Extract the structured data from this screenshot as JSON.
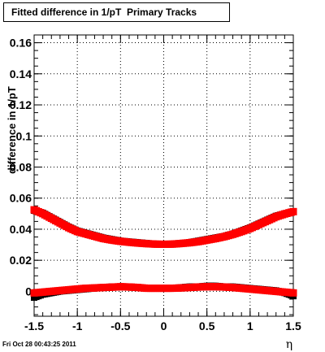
{
  "header": {
    "title": "Fitted difference in 1/pT  Primary Tracks"
  },
  "footer": {
    "timestamp": "Fri Oct 28 00:43:25 2011"
  },
  "colors": {
    "primary": "#ff0000",
    "secondary": "#000000",
    "grid": "#000000"
  },
  "chart_data": {
    "type": "scatter",
    "title": "Fitted difference in 1/pT  Primary Tracks",
    "xlabel": "η",
    "ylabel": "difference in 1/pT",
    "xlim": [
      -1.5,
      1.5
    ],
    "ylim": [
      -0.016,
      0.165
    ],
    "grid": true,
    "x_ticks": [
      -1.5,
      -1,
      -0.5,
      0,
      0.5,
      1,
      1.5
    ],
    "x_tick_labels": [
      "-1.5",
      "-1",
      "-0.5",
      "0",
      "0.5",
      "1",
      "1.5"
    ],
    "y_ticks": [
      0,
      0.02,
      0.04,
      0.06,
      0.08,
      0.1,
      0.12,
      0.14,
      0.16
    ],
    "y_tick_labels": [
      "0",
      "0.02",
      "0.04",
      "0.06",
      "0.08",
      "0.1",
      "0.12",
      "0.14",
      "0.16"
    ],
    "series": [
      {
        "color": "#000000",
        "x": [
          -1.5,
          -1.4,
          -1.3,
          -1.2,
          -1.1,
          -1.0,
          -0.9,
          -0.8,
          -0.7,
          -0.6,
          -0.5,
          -0.4,
          -0.3,
          -0.2,
          -0.1,
          0.0,
          0.1,
          0.2,
          0.3,
          0.4,
          0.5,
          0.6,
          0.7,
          0.8,
          0.9,
          1.0,
          1.1,
          1.2,
          1.3,
          1.4,
          1.5
        ],
        "y": [
          -0.004,
          -0.002,
          -0.001,
          0.0,
          0.0005,
          0.001,
          0.0015,
          0.002,
          0.0025,
          0.003,
          0.003,
          0.003,
          0.0025,
          0.002,
          0.002,
          0.002,
          0.002,
          0.0025,
          0.003,
          0.003,
          0.0035,
          0.0035,
          0.003,
          0.003,
          0.0025,
          0.002,
          0.0015,
          0.001,
          0.0005,
          -0.001,
          -0.003
        ]
      },
      {
        "color": "#ff0000",
        "x": [
          -1.5,
          -1.4,
          -1.3,
          -1.2,
          -1.1,
          -1.0,
          -0.9,
          -0.8,
          -0.7,
          -0.6,
          -0.5,
          -0.4,
          -0.3,
          -0.2,
          -0.1,
          0.0,
          0.1,
          0.2,
          0.3,
          0.4,
          0.5,
          0.6,
          0.7,
          0.8,
          0.9,
          1.0,
          1.1,
          1.2,
          1.3,
          1.4,
          1.5
        ],
        "y": [
          -0.001,
          -0.0005,
          0.0,
          0.0005,
          0.001,
          0.0015,
          0.002,
          0.0022,
          0.0025,
          0.0027,
          0.003,
          0.0028,
          0.0025,
          0.002,
          0.002,
          0.002,
          0.002,
          0.0022,
          0.0025,
          0.0028,
          0.003,
          0.003,
          0.0028,
          0.0025,
          0.002,
          0.0015,
          0.001,
          0.0005,
          0.0,
          -0.0005,
          -0.001
        ]
      },
      {
        "color": "#000000",
        "x": [
          -1.5,
          -1.4,
          -1.3,
          -1.2,
          -1.1,
          -1.0,
          -0.9,
          -0.8,
          -0.7,
          -0.6,
          -0.5,
          -0.4,
          -0.3,
          -0.2,
          -0.1,
          0.0,
          0.1,
          0.2,
          0.3,
          0.4,
          0.5,
          0.6,
          0.7,
          0.8,
          0.9,
          1.0,
          1.1,
          1.2,
          1.3,
          1.4,
          1.5
        ],
        "y": [
          0.052,
          0.0505,
          0.0475,
          0.0445,
          0.0415,
          0.039,
          0.0375,
          0.036,
          0.0345,
          0.0335,
          0.0325,
          0.032,
          0.0315,
          0.031,
          0.0305,
          0.0305,
          0.0305,
          0.031,
          0.0315,
          0.0325,
          0.0335,
          0.0345,
          0.0355,
          0.037,
          0.039,
          0.041,
          0.0435,
          0.046,
          0.0485,
          0.05,
          0.0515
        ]
      },
      {
        "color": "#ff0000",
        "x": [
          -1.5,
          -1.4,
          -1.3,
          -1.2,
          -1.1,
          -1.0,
          -0.9,
          -0.8,
          -0.7,
          -0.6,
          -0.5,
          -0.4,
          -0.3,
          -0.2,
          -0.1,
          0.0,
          0.1,
          0.2,
          0.3,
          0.4,
          0.5,
          0.6,
          0.7,
          0.8,
          0.9,
          1.0,
          1.1,
          1.2,
          1.3,
          1.4,
          1.5
        ],
        "y": [
          0.0525,
          0.05,
          0.047,
          0.044,
          0.041,
          0.0385,
          0.037,
          0.0355,
          0.034,
          0.033,
          0.0322,
          0.0316,
          0.0311,
          0.0307,
          0.0304,
          0.0303,
          0.0304,
          0.0308,
          0.0313,
          0.032,
          0.033,
          0.034,
          0.0352,
          0.0367,
          0.0385,
          0.0405,
          0.043,
          0.0455,
          0.048,
          0.0498,
          0.0513
        ]
      }
    ]
  }
}
